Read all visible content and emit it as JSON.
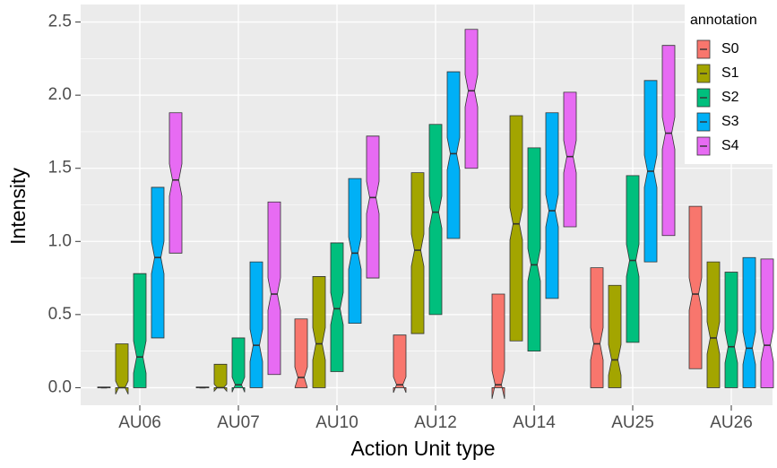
{
  "chart_data": {
    "type": "boxplot",
    "notched": true,
    "x_label": "Action Unit type",
    "y_label": "Intensity",
    "legend_title": "annotation",
    "legend_position": "top-right",
    "grid": true,
    "categories": [
      "AU06",
      "AU07",
      "AU10",
      "AU12",
      "AU14",
      "AU25",
      "AU26"
    ],
    "ylim": [
      -0.12,
      2.62
    ],
    "yticks": [
      {
        "value": 0,
        "label": "0.0"
      },
      0.5,
      {
        "value": 1,
        "label": "1.0"
      },
      1.5,
      {
        "value": 2,
        "label": "2.0"
      },
      2.5
    ],
    "series": [
      {
        "name": "S0",
        "color": "#F8766D",
        "q1": [
          0,
          0,
          0,
          0,
          0,
          0,
          0.13
        ],
        "median": [
          0,
          0,
          0.07,
          0.02,
          0.02,
          0.3,
          0.64
        ],
        "q3": [
          0.005,
          0.005,
          0.47,
          0.36,
          0.64,
          0.82,
          1.24
        ]
      },
      {
        "name": "S1",
        "color": "#A3A500",
        "q1": [
          0,
          0,
          0,
          0.37,
          0.32,
          0,
          0
        ],
        "median": [
          0,
          0,
          0.3,
          0.94,
          1.12,
          0.19,
          0.34
        ],
        "q3": [
          0.3,
          0.16,
          0.76,
          1.47,
          1.86,
          0.7,
          0.86
        ]
      },
      {
        "name": "S2",
        "color": "#00BF7D",
        "q1": [
          0,
          0,
          0.11,
          0.5,
          0.25,
          0.31,
          0
        ],
        "median": [
          0.21,
          0.02,
          0.54,
          1.2,
          0.84,
          0.87,
          0.28
        ],
        "q3": [
          0.78,
          0.34,
          0.99,
          1.8,
          1.64,
          1.45,
          0.79
        ]
      },
      {
        "name": "S3",
        "color": "#00B0F6",
        "q1": [
          0.34,
          0,
          0.44,
          1.02,
          0.61,
          0.86,
          0
        ],
        "median": [
          0.89,
          0.29,
          0.92,
          1.6,
          1.21,
          1.48,
          0.27
        ],
        "q3": [
          1.37,
          0.86,
          1.43,
          2.16,
          1.88,
          2.1,
          0.89
        ]
      },
      {
        "name": "S4",
        "color": "#E76BF3",
        "q1": [
          0.92,
          0.09,
          0.75,
          1.5,
          1.1,
          1.04,
          0
        ],
        "median": [
          1.42,
          0.64,
          1.3,
          2.03,
          1.58,
          1.74,
          0.29
        ],
        "q3": [
          1.88,
          1.27,
          1.72,
          2.45,
          2.02,
          2.34,
          0.88
        ]
      }
    ]
  }
}
